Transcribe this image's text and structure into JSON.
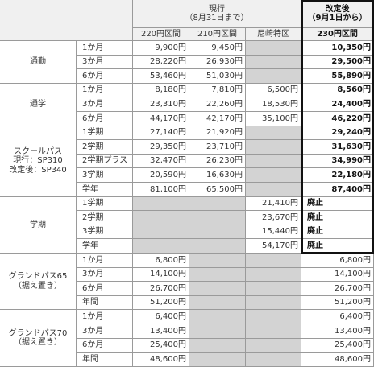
{
  "header": {
    "current_title": "現行",
    "current_subtitle": "（8月31日まで）",
    "revised_title": "改定後",
    "revised_subtitle": "（9月1日から）",
    "col_220": "220円区間",
    "col_210": "210円区間",
    "col_amagasaki": "尼崎特区",
    "col_230": "230円区間"
  },
  "groups": [
    {
      "lines": [
        "通勤"
      ],
      "rows": [
        {
          "period": "1か月",
          "v220": "9,900円",
          "v210": "9,450円",
          "vama": "",
          "v230": "10,350円"
        },
        {
          "period": "3か月",
          "v220": "28,220円",
          "v210": "26,930円",
          "vama": "",
          "v230": "29,500円"
        },
        {
          "period": "6か月",
          "v220": "53,460円",
          "v210": "51,030円",
          "vama": "",
          "v230": "55,890円"
        }
      ]
    },
    {
      "lines": [
        "通学"
      ],
      "rows": [
        {
          "period": "1か月",
          "v220": "8,180円",
          "v210": "7,810円",
          "vama": "6,500円",
          "v230": "8,560円"
        },
        {
          "period": "3か月",
          "v220": "23,310円",
          "v210": "22,260円",
          "vama": "18,530円",
          "v230": "24,400円"
        },
        {
          "period": "6か月",
          "v220": "44,170円",
          "v210": "42,170円",
          "vama": "35,100円",
          "v230": "46,220円"
        }
      ]
    },
    {
      "lines": [
        "スクールパス",
        "現行：SP310",
        "改定後：SP340"
      ],
      "rows": [
        {
          "period": "1学期",
          "v220": "27,140円",
          "v210": "21,920円",
          "vama": "",
          "v230": "29,240円"
        },
        {
          "period": "2学期",
          "v220": "29,350円",
          "v210": "23,710円",
          "vama": "",
          "v230": "31,630円"
        },
        {
          "period": "2学期プラス",
          "v220": "32,470円",
          "v210": "26,230円",
          "vama": "",
          "v230": "34,990円"
        },
        {
          "period": "3学期",
          "v220": "20,590円",
          "v210": "16,630円",
          "vama": "",
          "v230": "22,180円"
        },
        {
          "period": "学年",
          "v220": "81,100円",
          "v210": "65,500円",
          "vama": "",
          "v230": "87,400円"
        }
      ]
    },
    {
      "lines": [
        "学期"
      ],
      "rows": [
        {
          "period": "1学期",
          "v220": "",
          "v210": "",
          "vama": "21,410円",
          "v230": "廃止"
        },
        {
          "period": "2学期",
          "v220": "",
          "v210": "",
          "vama": "23,670円",
          "v230": "廃止"
        },
        {
          "period": "3学期",
          "v220": "",
          "v210": "",
          "vama": "15,440円",
          "v230": "廃止"
        },
        {
          "period": "学年",
          "v220": "",
          "v210": "",
          "vama": "54,170円",
          "v230": "廃止"
        }
      ]
    },
    {
      "lines": [
        "グランドパス65",
        "（据え置き）"
      ],
      "rows": [
        {
          "period": "1か月",
          "v220": "6,800円",
          "v210": "",
          "vama": "",
          "v230": "6,800円"
        },
        {
          "period": "3か月",
          "v220": "14,100円",
          "v210": "",
          "vama": "",
          "v230": "14,100円"
        },
        {
          "period": "6か月",
          "v220": "26,700円",
          "v210": "",
          "vama": "",
          "v230": "26,700円"
        },
        {
          "period": "年間",
          "v220": "51,200円",
          "v210": "",
          "vama": "",
          "v230": "51,200円"
        }
      ]
    },
    {
      "lines": [
        "グランドパス70",
        "（据え置き）"
      ],
      "rows": [
        {
          "period": "1か月",
          "v220": "6,400円",
          "v210": "",
          "vama": "",
          "v230": "6,400円"
        },
        {
          "period": "3か月",
          "v220": "13,400円",
          "v210": "",
          "vama": "",
          "v230": "13,400円"
        },
        {
          "period": "6か月",
          "v220": "25,400円",
          "v210": "",
          "vama": "",
          "v230": "25,400円"
        },
        {
          "period": "年間",
          "v220": "48,600円",
          "v210": "",
          "vama": "",
          "v230": "48,600円"
        }
      ]
    }
  ]
}
